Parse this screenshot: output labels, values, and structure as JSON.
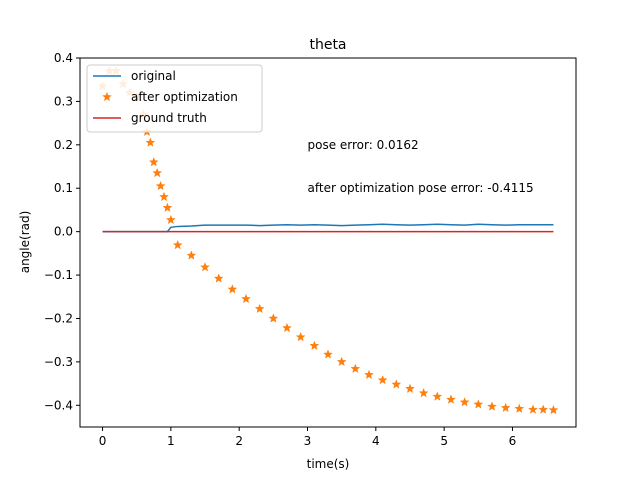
{
  "chart_data": {
    "type": "line",
    "title": "theta",
    "xlabel": "time(s)",
    "ylabel": "angle(rad)",
    "xlim": [
      -0.33,
      6.93
    ],
    "ylim": [
      -0.45,
      0.4
    ],
    "xticks": [
      0,
      1,
      2,
      3,
      4,
      5,
      6
    ],
    "xtick_labels": [
      "0",
      "1",
      "2",
      "3",
      "4",
      "5",
      "6"
    ],
    "yticks": [
      -0.4,
      -0.3,
      -0.2,
      -0.1,
      0.0,
      0.1,
      0.2,
      0.3,
      0.4
    ],
    "ytick_labels": [
      "−0.4",
      "−0.3",
      "−0.2",
      "−0.1",
      "0.0",
      "0.1",
      "0.2",
      "0.3",
      "0.4"
    ],
    "grid": false,
    "legend_position": "top-left",
    "series": [
      {
        "name": "original",
        "style": "line",
        "color": "#1f77b4",
        "x": [
          0.0,
          0.1,
          0.2,
          0.3,
          0.4,
          0.5,
          0.6,
          0.7,
          0.8,
          0.9,
          0.95,
          1.0,
          1.1,
          1.3,
          1.5,
          1.7,
          1.9,
          2.1,
          2.3,
          2.5,
          2.7,
          2.9,
          3.1,
          3.3,
          3.5,
          3.7,
          3.9,
          4.1,
          4.3,
          4.5,
          4.7,
          4.9,
          5.1,
          5.3,
          5.5,
          5.7,
          5.9,
          6.1,
          6.3,
          6.6
        ],
        "y": [
          0.0,
          0.0,
          0.0,
          0.0,
          0.0,
          0.0,
          0.0,
          0.0,
          0.0,
          0.0,
          0.0,
          0.01,
          0.012,
          0.013,
          0.015,
          0.015,
          0.015,
          0.015,
          0.014,
          0.015,
          0.016,
          0.015,
          0.016,
          0.015,
          0.014,
          0.015,
          0.016,
          0.017,
          0.016,
          0.015,
          0.016,
          0.017,
          0.016,
          0.015,
          0.017,
          0.016,
          0.015,
          0.016,
          0.016,
          0.016
        ]
      },
      {
        "name": "after optimization",
        "style": "star",
        "color": "#ff7f0e",
        "x": [
          0.0,
          0.1,
          0.2,
          0.3,
          0.4,
          0.5,
          0.6,
          0.65,
          0.7,
          0.75,
          0.8,
          0.85,
          0.9,
          0.95,
          1.0,
          1.1,
          1.3,
          1.5,
          1.7,
          1.9,
          2.1,
          2.3,
          2.5,
          2.7,
          2.9,
          3.1,
          3.3,
          3.5,
          3.7,
          3.9,
          4.1,
          4.3,
          4.5,
          4.7,
          4.9,
          5.1,
          5.3,
          5.5,
          5.7,
          5.9,
          6.1,
          6.3,
          6.45,
          6.6
        ],
        "y": [
          0.335,
          0.37,
          0.37,
          0.34,
          0.32,
          0.31,
          0.27,
          0.23,
          0.205,
          0.16,
          0.135,
          0.105,
          0.08,
          0.055,
          0.027,
          -0.031,
          -0.055,
          -0.082,
          -0.108,
          -0.133,
          -0.155,
          -0.178,
          -0.2,
          -0.222,
          -0.243,
          -0.263,
          -0.283,
          -0.3,
          -0.316,
          -0.33,
          -0.342,
          -0.352,
          -0.362,
          -0.372,
          -0.38,
          -0.387,
          -0.393,
          -0.398,
          -0.403,
          -0.406,
          -0.408,
          -0.41,
          -0.41,
          -0.411
        ]
      },
      {
        "name": "ground truth",
        "style": "line",
        "color": "#d62728",
        "x": [
          0.0,
          6.6
        ],
        "y": [
          0.0,
          0.0
        ]
      }
    ],
    "annotations": [
      {
        "text": "pose error: 0.0162",
        "x": 3.0,
        "y": 0.2
      },
      {
        "text": "after optimization pose error: -0.4115",
        "x": 3.0,
        "y": 0.1
      }
    ]
  }
}
